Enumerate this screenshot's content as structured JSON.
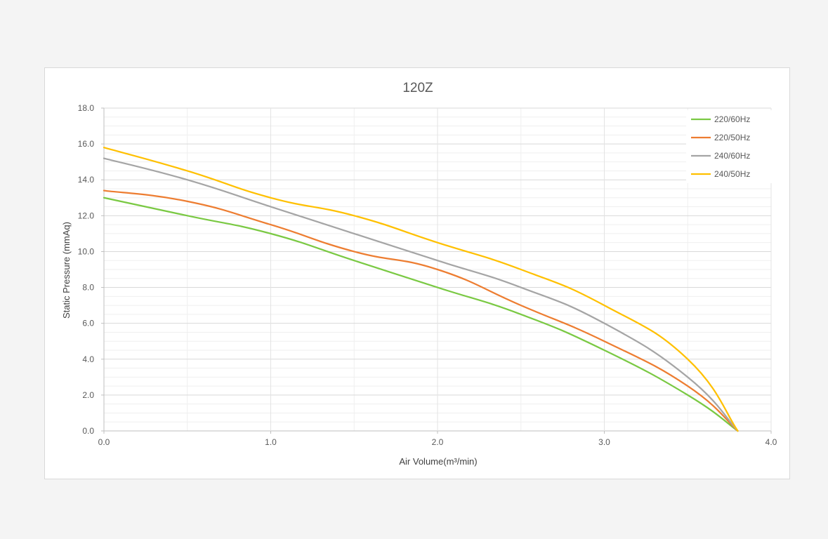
{
  "chart_data": {
    "type": "line",
    "title": "120Z",
    "xlabel": "Air Volume(m³/min)",
    "ylabel": "Static Pressure (mmAq)",
    "xlim": [
      0,
      4
    ],
    "ylim": [
      0,
      18
    ],
    "x_ticks": [
      "0.0",
      "1.0",
      "2.0",
      "3.0",
      "4.0"
    ],
    "y_ticks": [
      "0.0",
      "2.0",
      "4.0",
      "6.0",
      "8.0",
      "10.0",
      "12.0",
      "14.0",
      "16.0",
      "18.0"
    ],
    "grid": true,
    "legend_position": "top-right",
    "x": [
      0,
      0.5,
      1.0,
      1.5,
      2.0,
      2.5,
      3.0,
      3.5,
      3.8
    ],
    "series": [
      {
        "name": "220/60Hz",
        "color": "#7ac943",
        "values": [
          13.0,
          12.0,
          11.0,
          9.5,
          8.0,
          6.5,
          4.5,
          2.0,
          0
        ]
      },
      {
        "name": "220/50Hz",
        "color": "#ed7d31",
        "values": [
          13.4,
          12.8,
          11.5,
          10.0,
          9.0,
          7.0,
          5.0,
          2.5,
          0
        ]
      },
      {
        "name": "240/60Hz",
        "color": "#a5a5a5",
        "values": [
          15.2,
          14.0,
          12.5,
          11.0,
          9.5,
          8.0,
          6.0,
          3.0,
          0
        ]
      },
      {
        "name": "240/50Hz",
        "color": "#ffc000",
        "values": [
          15.8,
          14.5,
          13.0,
          12.0,
          10.5,
          9.0,
          7.0,
          4.0,
          0
        ]
      }
    ]
  }
}
